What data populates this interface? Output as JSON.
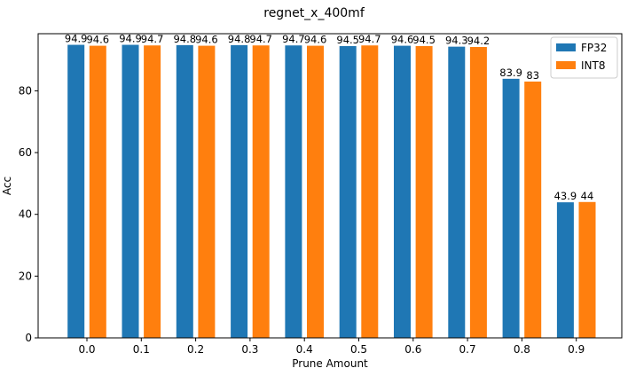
{
  "chart_data": {
    "type": "bar",
    "title": "regnet_x_400mf",
    "xlabel": "Prune Amount",
    "ylabel": "Acc",
    "categories": [
      "0.0",
      "0.1",
      "0.2",
      "0.3",
      "0.4",
      "0.5",
      "0.6",
      "0.7",
      "0.8",
      "0.9"
    ],
    "series": [
      {
        "name": "FP32",
        "color": "#1f77b4",
        "values": [
          94.9,
          94.9,
          94.8,
          94.8,
          94.7,
          94.5,
          94.6,
          94.3,
          83.9,
          43.9
        ],
        "labels": [
          "94.9",
          "94.9",
          "94.8",
          "94.8",
          "94.7",
          "94.5",
          "94.6",
          "94.3",
          "83.9",
          "43.9"
        ]
      },
      {
        "name": "INT8",
        "color": "#ff7f0e",
        "values": [
          94.6,
          94.7,
          94.6,
          94.7,
          94.6,
          94.7,
          94.5,
          94.2,
          83,
          44
        ],
        "labels": [
          "94.6",
          "94.7",
          "94.6",
          "94.7",
          "94.6",
          "94.7",
          "94.5",
          "94.2",
          "83",
          "44"
        ]
      }
    ],
    "ylim": [
      0,
      98.5
    ],
    "yticks": [
      "0",
      "20",
      "40",
      "60",
      "80"
    ],
    "grid": false,
    "legend_position": "top-right"
  }
}
